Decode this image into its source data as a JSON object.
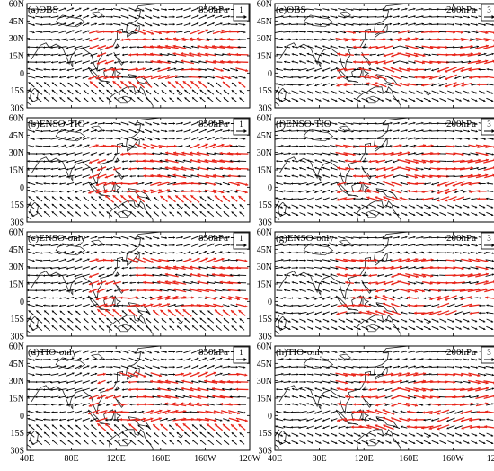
{
  "figure": {
    "lat_labels": [
      "60N",
      "45N",
      "30N",
      "15N",
      "0",
      "15S",
      "30S"
    ],
    "lon_labels": [
      "40E",
      "80E",
      "120E",
      "160E",
      "160W",
      "120W"
    ],
    "arrow_colors": {
      "significant": "#e8251a",
      "insignificant": "#000000",
      "coast": "#222222"
    },
    "legend_arrow_icon": "right-arrow-icon"
  },
  "panels": [
    {
      "id": "a",
      "title": "(a)OBS",
      "level": "850hPa",
      "ref_vector": "1",
      "column": 0,
      "row": 0,
      "pattern": "low"
    },
    {
      "id": "b",
      "title": "(b)ENSO-TIO",
      "level": "850hPa",
      "ref_vector": "1",
      "column": 0,
      "row": 1,
      "pattern": "low"
    },
    {
      "id": "c",
      "title": "(c)ENSO-only",
      "level": "850hPa",
      "ref_vector": "1",
      "column": 0,
      "row": 2,
      "pattern": "low"
    },
    {
      "id": "d",
      "title": "(d)TIO-only",
      "level": "850hPa",
      "ref_vector": "1",
      "column": 0,
      "row": 3,
      "pattern": "low"
    },
    {
      "id": "e",
      "title": "(e)OBS",
      "level": "200hPa",
      "ref_vector": "3",
      "column": 1,
      "row": 0,
      "pattern": "high"
    },
    {
      "id": "f",
      "title": "(f)ENSO-TIO",
      "level": "200hPa",
      "ref_vector": "3",
      "column": 1,
      "row": 1,
      "pattern": "high"
    },
    {
      "id": "g",
      "title": "(g)ENSO-only",
      "level": "200hPa",
      "ref_vector": "3",
      "column": 1,
      "row": 2,
      "pattern": "high"
    },
    {
      "id": "h",
      "title": "(h)TIO-only",
      "level": "200hPa",
      "ref_vector": "3",
      "column": 1,
      "row": 3,
      "pattern": "high"
    }
  ]
}
